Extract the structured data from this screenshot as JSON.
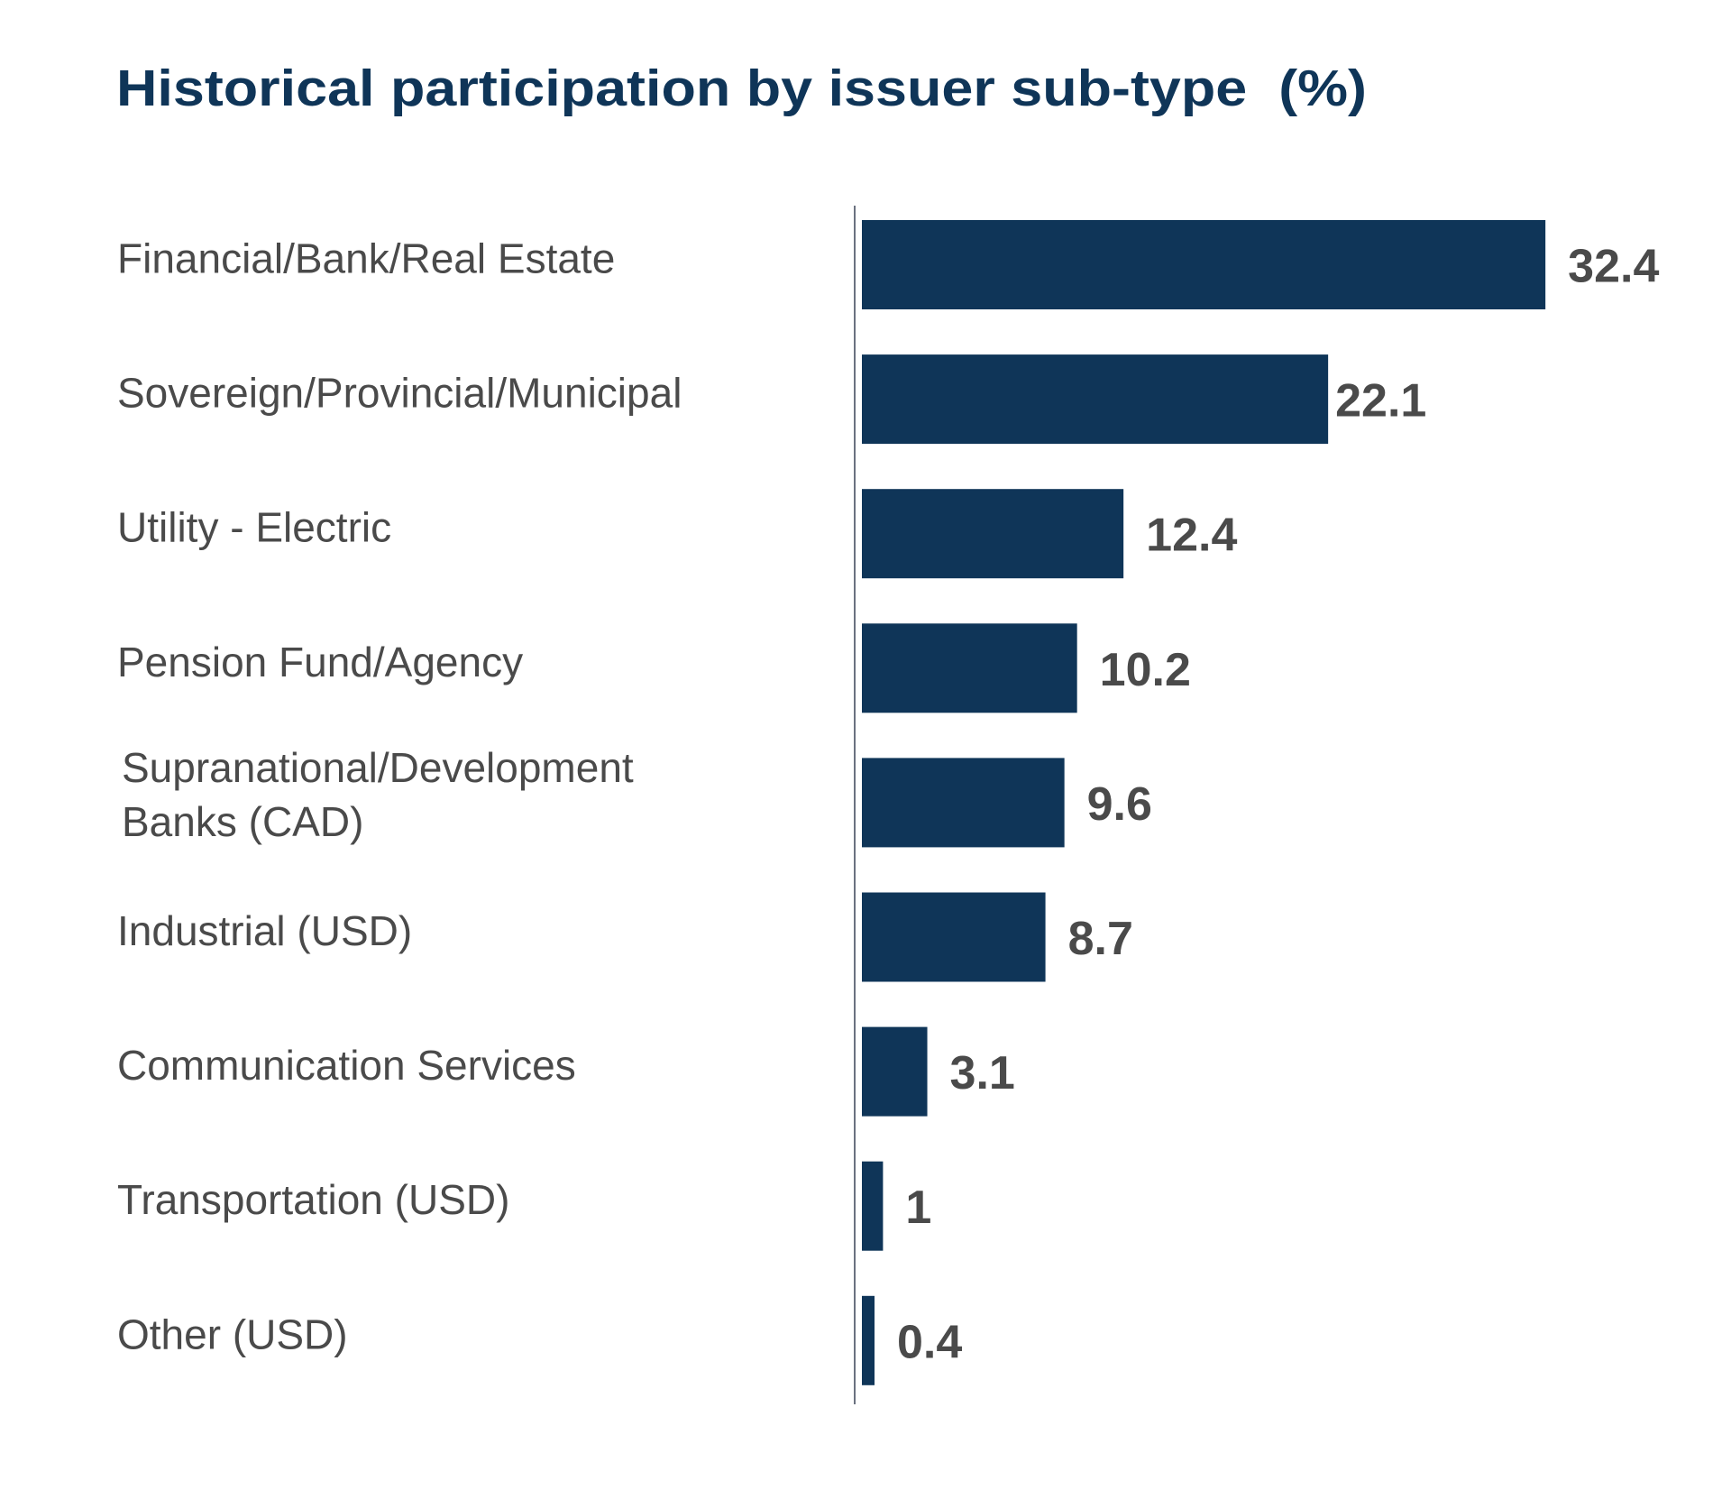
{
  "chart_data": {
    "type": "bar",
    "orientation": "horizontal",
    "title": "Historical participation by issuer sub-type  (%)",
    "xlabel": "",
    "ylabel": "",
    "grid": false,
    "legend": null,
    "xlim": [
      0,
      32.4
    ],
    "categories": [
      [
        "Financial/Bank/Real Estate"
      ],
      [
        "Sovereign/Provincial/Municipal"
      ],
      [
        "Utility - Electric"
      ],
      [
        "Pension Fund/Agency"
      ],
      [
        "Supranational/Development",
        "Banks (CAD)"
      ],
      [
        "Industrial (USD)"
      ],
      [
        "Communication Services"
      ],
      [
        "Transportation (USD)"
      ],
      [
        "Other (USD)"
      ]
    ],
    "values": [
      32.4,
      22.1,
      12.4,
      10.2,
      9.6,
      8.7,
      3.1,
      1,
      0.4
    ],
    "value_labels": [
      "32.4",
      "22.1",
      "12.4",
      "10.2",
      "9.6",
      "8.7",
      "3.1",
      "1",
      "0.4"
    ],
    "colors": {
      "bar": "#0f3558",
      "axis": "#6b7280",
      "title": "#0f3558",
      "text": "#4a4a4a"
    }
  }
}
